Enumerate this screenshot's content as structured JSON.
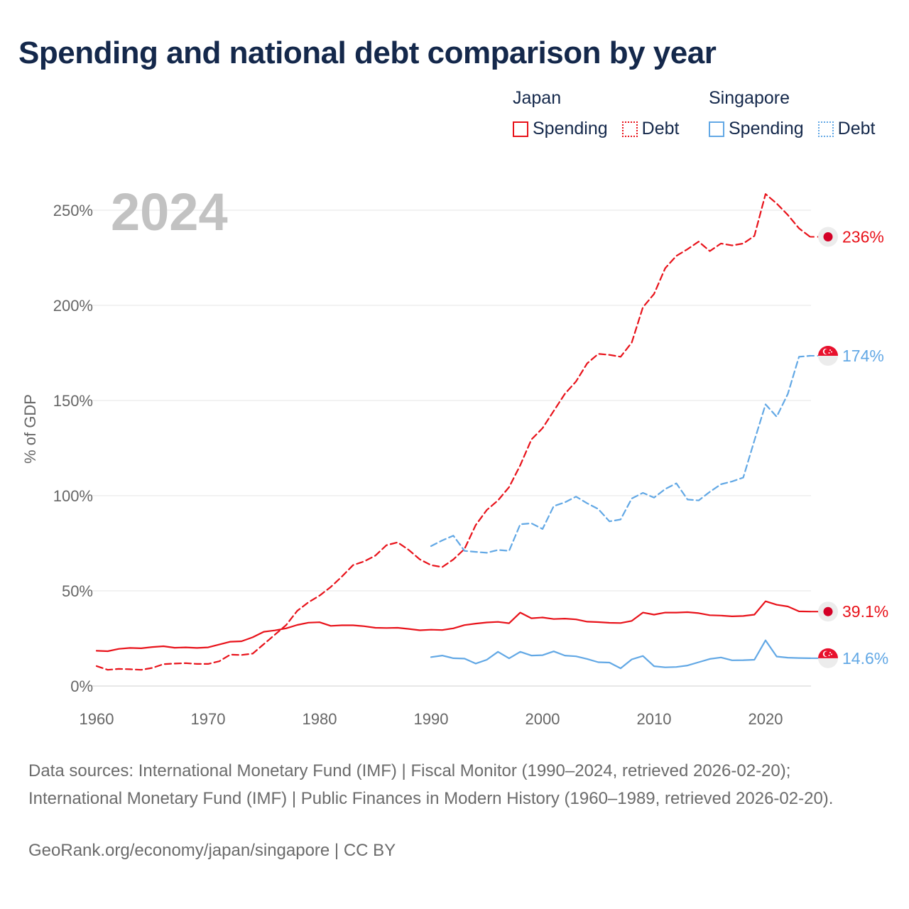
{
  "title": "Spending and national debt comparison by year",
  "legend": {
    "japan": {
      "country": "Japan",
      "spending": "Spending",
      "debt": "Debt"
    },
    "singapore": {
      "country": "Singapore",
      "spending": "Spending",
      "debt": "Debt"
    }
  },
  "colors": {
    "japan": "#e8121a",
    "singapore": "#62a8e5",
    "year_label": "#c2c2c2",
    "axis_text": "#666666"
  },
  "chart_data": {
    "type": "line",
    "title": "Spending and national debt comparison by year",
    "year_label": "2024",
    "xlabel": "",
    "ylabel": "% of GDP",
    "xlim": [
      1960,
      2024
    ],
    "ylim": [
      0,
      260
    ],
    "x_ticks": [
      "1960",
      "1970",
      "1980",
      "1990",
      "2000",
      "2010",
      "2020"
    ],
    "y_ticks": [
      "0%",
      "50%",
      "100%",
      "150%",
      "200%",
      "250%"
    ],
    "series": [
      {
        "name": "Japan Debt",
        "country": "Japan",
        "measure": "Debt",
        "style": "dashed",
        "start_year": 1960,
        "end_label": "236%",
        "values": [
          10.5,
          8.5,
          9,
          8.8,
          8.5,
          9.5,
          11.5,
          11.8,
          12,
          11.6,
          11.6,
          13,
          16.5,
          16.3,
          17,
          22,
          27,
          32,
          39.5,
          44,
          47.5,
          52,
          57.5,
          63.5,
          65.5,
          68.5,
          74,
          75.5,
          71.5,
          66.5,
          63.5,
          62.5,
          66.5,
          72,
          84.5,
          92.5,
          97.5,
          104.5,
          116,
          129.5,
          135.5,
          144.5,
          153.5,
          160,
          169.5,
          174.5,
          174,
          173,
          180.5,
          199,
          206,
          219.5,
          226,
          229.5,
          233.5,
          228.5,
          232.5,
          231.5,
          232.5,
          236.5,
          258.5,
          253.5,
          247.5,
          240.5,
          236
        ]
      },
      {
        "name": "Japan Spending",
        "country": "Japan",
        "measure": "Spending",
        "style": "solid",
        "start_year": 1960,
        "end_label": "39.1%",
        "values": [
          18.5,
          18.3,
          19.5,
          20,
          19.8,
          20.5,
          20.9,
          20.1,
          20.3,
          20,
          20.3,
          21.8,
          23.3,
          23.5,
          25.6,
          28.5,
          29.2,
          30.3,
          32.1,
          33.3,
          33.5,
          31.6,
          31.9,
          31.9,
          31.4,
          30.6,
          30.5,
          30.6,
          30,
          29.3,
          29.6,
          29.4,
          30.3,
          32,
          32.8,
          33.4,
          33.7,
          33,
          38.6,
          35.6,
          36,
          35.2,
          35.4,
          35,
          33.8,
          33.6,
          33.2,
          33.1,
          34.2,
          38.6,
          37.5,
          38.6,
          38.6,
          38.8,
          38.3,
          37.2,
          37,
          36.6,
          36.8,
          37.5,
          44.5,
          42.7,
          41.8,
          39.2,
          39.1
        ]
      },
      {
        "name": "Singapore Debt",
        "country": "Singapore",
        "measure": "Debt",
        "style": "dashed",
        "start_year": 1990,
        "end_label": "174%",
        "values": [
          73.5,
          76.5,
          79,
          71,
          70.5,
          70,
          71.5,
          71,
          85,
          85.5,
          82.5,
          94.5,
          96.5,
          99.5,
          96,
          93,
          86.5,
          87.5,
          98.5,
          101.5,
          99,
          103.5,
          106.5,
          98,
          97.5,
          102,
          106,
          107.5,
          109.5,
          129,
          148,
          141.5,
          153.5,
          173,
          173.5
        ]
      },
      {
        "name": "Singapore Spending",
        "country": "Singapore",
        "measure": "Spending",
        "style": "solid",
        "start_year": 1990,
        "end_label": "14.6%",
        "values": [
          15.2,
          16,
          14.6,
          14.4,
          11.8,
          13.8,
          18,
          14.5,
          18,
          16,
          16.2,
          18.2,
          16,
          15.6,
          14.2,
          12.5,
          12.3,
          9.3,
          14,
          15.8,
          10.4,
          9.8,
          10,
          10.8,
          12.5,
          14.2,
          15,
          13.5,
          13.6,
          13.8,
          24,
          15.5,
          14.9,
          14.7,
          14.6
        ]
      }
    ]
  },
  "footer": {
    "sources": "Data sources: International Monetary Fund (IMF) | Fiscal Monitor (1990–2024, retrieved 2026-02-20); International Monetary Fund (IMF) | Public Finances in Modern History (1960–1989, retrieved 2026-02-20).",
    "credit": "GeoRank.org/economy/japan/singapore | CC BY"
  }
}
